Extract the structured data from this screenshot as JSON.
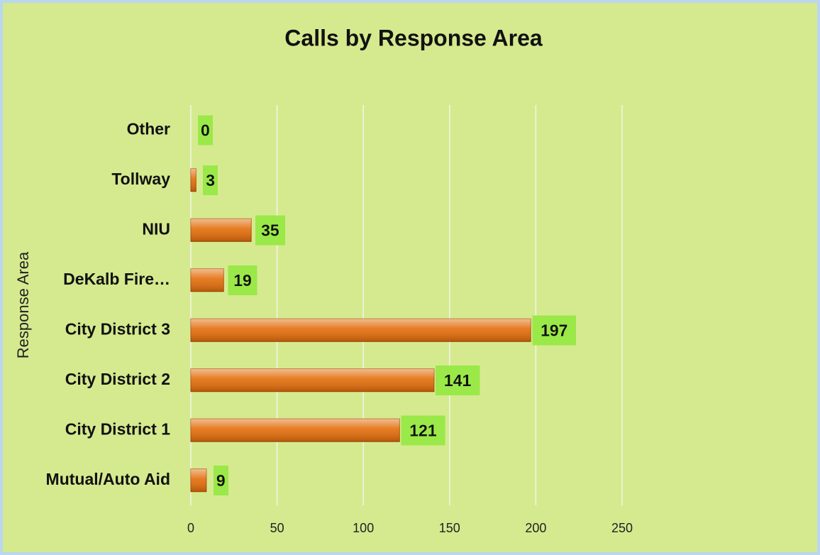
{
  "chart_data": {
    "type": "bar",
    "orientation": "horizontal",
    "title": "Calls by Response Area",
    "y_label": "Response Area",
    "categories": [
      "Mutual/Auto Aid",
      "City District 1",
      "City District 2",
      "City District 3",
      "DeKalb Fire…",
      "NIU",
      "Tollway",
      "Other"
    ],
    "values": [
      9,
      121,
      141,
      197,
      19,
      35,
      3,
      0
    ],
    "color": "#e36c09",
    "xlim": [
      0,
      250
    ],
    "xticks": [
      0,
      50,
      100,
      150,
      200,
      250
    ],
    "grid": true
  }
}
